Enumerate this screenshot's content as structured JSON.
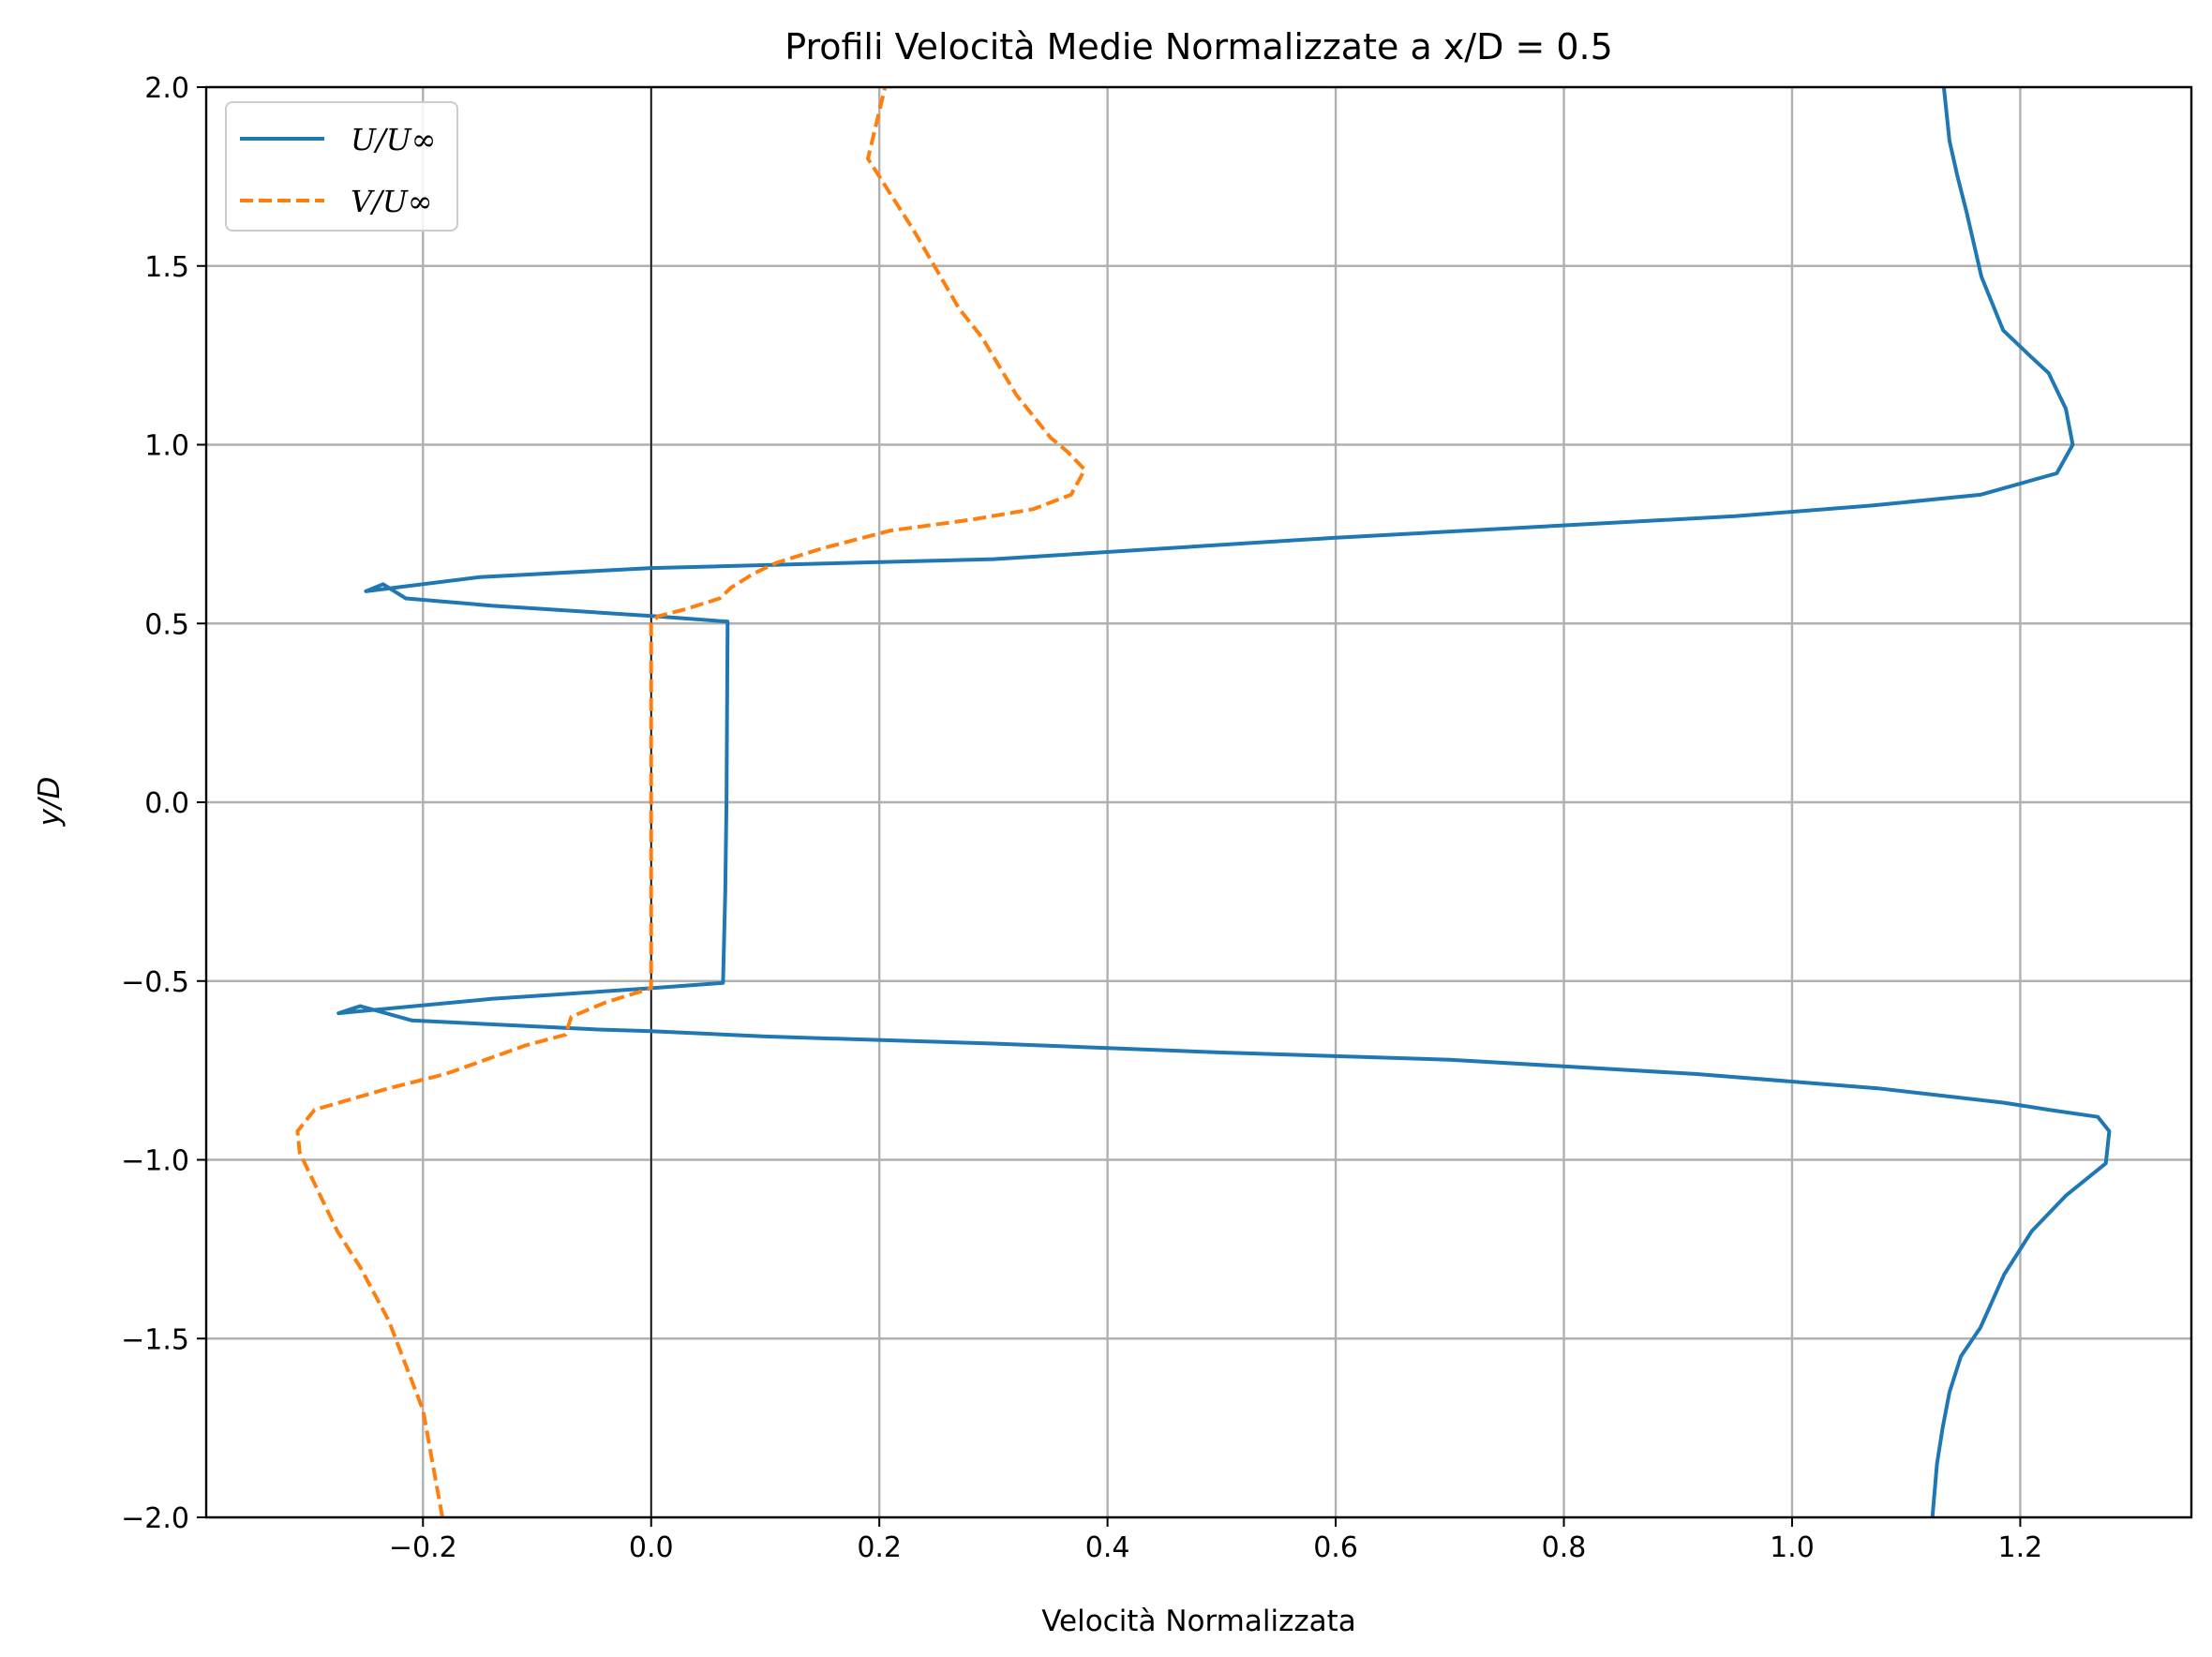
{
  "chart_data": {
    "type": "line",
    "title": "Profili Velocità Medie Normalizzate a x/D = 0.5",
    "xlabel": "Velocità Normalizzata",
    "ylabel": "y/D",
    "xlim": [
      -0.39,
      1.35
    ],
    "ylim": [
      -2.0,
      2.0
    ],
    "xticks": [
      -0.2,
      0.0,
      0.2,
      0.4,
      0.6,
      0.8,
      1.0,
      1.2
    ],
    "xtick_labels": [
      "−0.2",
      "0.0",
      "0.2",
      "0.4",
      "0.6",
      "0.8",
      "1.0",
      "1.2"
    ],
    "yticks": [
      -2.0,
      -1.5,
      -1.0,
      -0.5,
      0.0,
      0.5,
      1.0,
      1.5,
      2.0
    ],
    "ytick_labels": [
      "−2.0",
      "−1.5",
      "−1.0",
      "−0.5",
      "0.0",
      "0.5",
      "1.0",
      "1.5",
      "2.0"
    ],
    "grid": true,
    "zero_line_x": 0.0,
    "legend_position": "upper-left",
    "series": [
      {
        "name": "U/U∞",
        "color": "#1f77b4",
        "style": "solid",
        "x": [
          1.123,
          1.127,
          1.132,
          1.138,
          1.148,
          1.165,
          1.186,
          1.21,
          1.24,
          1.275,
          1.278,
          1.268,
          1.225,
          1.185,
          1.075,
          0.915,
          0.7,
          0.5,
          0.3,
          0.1,
          0.0,
          -0.05,
          -0.21,
          -0.255,
          -0.274,
          -0.14,
          0.0,
          0.063,
          0.065,
          0.066,
          0.067,
          0.005,
          -0.14,
          -0.215,
          -0.235,
          -0.25,
          -0.15,
          0.0,
          0.3,
          0.6,
          0.95,
          1.07,
          1.165,
          1.232,
          1.246,
          1.24,
          1.225,
          1.208,
          1.185,
          1.166,
          1.153,
          1.145,
          1.138,
          1.133
        ],
        "y": [
          -2.0,
          -1.85,
          -1.75,
          -1.65,
          -1.55,
          -1.47,
          -1.32,
          -1.2,
          -1.1,
          -1.01,
          -0.92,
          -0.88,
          -0.86,
          -0.84,
          -0.8,
          -0.76,
          -0.72,
          -0.7,
          -0.675,
          -0.655,
          -0.64,
          -0.635,
          -0.61,
          -0.57,
          -0.59,
          -0.55,
          -0.52,
          -0.505,
          -0.25,
          0.0,
          0.505,
          0.52,
          0.55,
          0.57,
          0.61,
          0.59,
          0.63,
          0.655,
          0.68,
          0.74,
          0.8,
          0.83,
          0.86,
          0.92,
          1.0,
          1.1,
          1.2,
          1.25,
          1.32,
          1.47,
          1.65,
          1.75,
          1.85,
          2.0
        ]
      },
      {
        "name": "V/U∞",
        "color": "#ff7f0e",
        "style": "dashed",
        "x": [
          -0.183,
          -0.2,
          -0.23,
          -0.255,
          -0.275,
          -0.29,
          -0.308,
          -0.31,
          -0.305,
          -0.295,
          -0.23,
          -0.18,
          -0.11,
          -0.075,
          -0.07,
          -0.04,
          0.0,
          0.0,
          0.0,
          0.0,
          0.006,
          0.03,
          0.06,
          0.07,
          0.09,
          0.11,
          0.15,
          0.21,
          0.28,
          0.335,
          0.368,
          0.38,
          0.365,
          0.35,
          0.32,
          0.29,
          0.27,
          0.23,
          0.19,
          0.205
        ],
        "y": [
          -2.0,
          -1.7,
          -1.45,
          -1.3,
          -1.2,
          -1.1,
          -0.98,
          -0.92,
          -0.9,
          -0.86,
          -0.8,
          -0.76,
          -0.68,
          -0.65,
          -0.6,
          -0.56,
          -0.52,
          -0.5,
          0.0,
          0.5,
          0.52,
          0.54,
          0.57,
          0.6,
          0.64,
          0.67,
          0.71,
          0.76,
          0.79,
          0.82,
          0.86,
          0.93,
          0.98,
          1.02,
          1.14,
          1.3,
          1.38,
          1.6,
          1.8,
          2.0
        ]
      }
    ]
  }
}
